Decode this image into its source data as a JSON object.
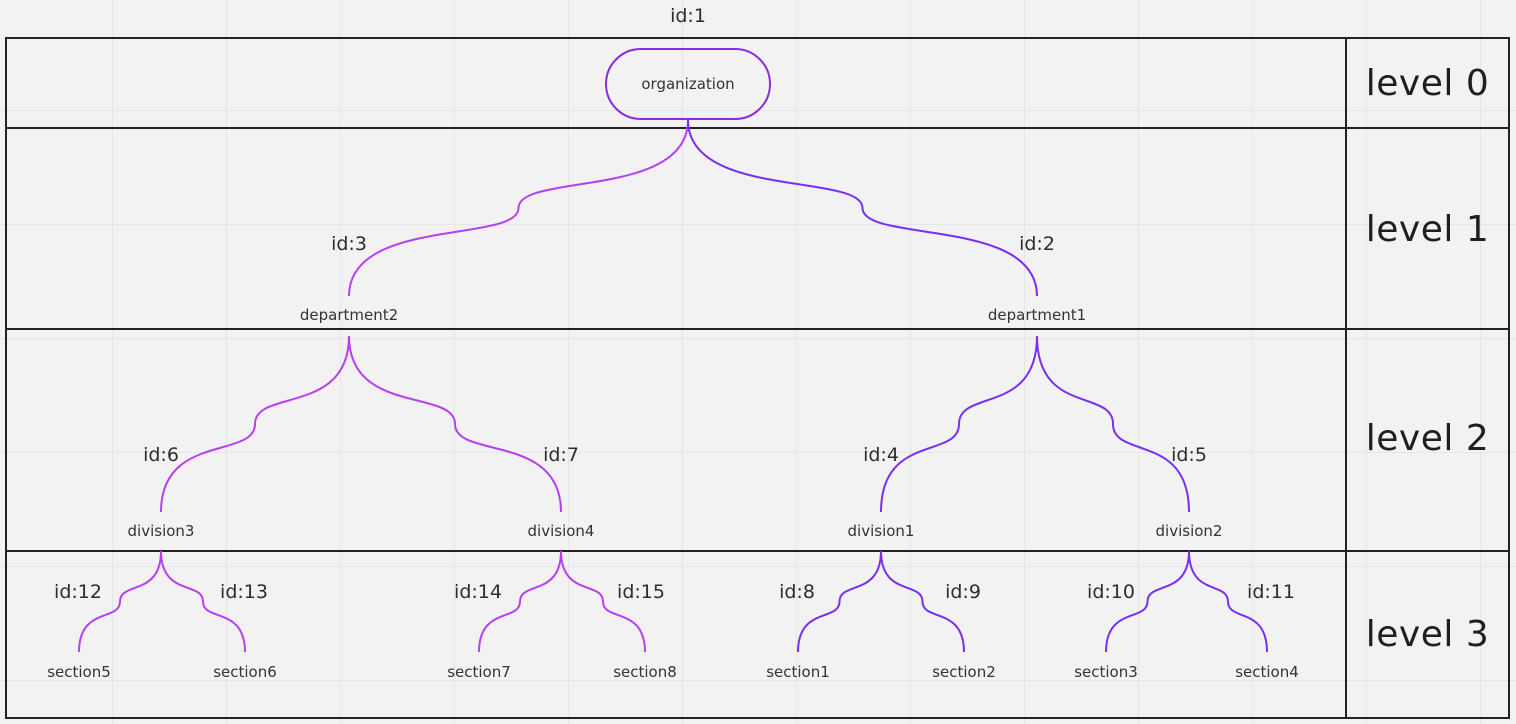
{
  "levels": [
    "level 0",
    "level 1",
    "level 2",
    "level 3"
  ],
  "nodes": {
    "organization": {
      "id_label": "id:1",
      "name": "organization"
    },
    "department2": {
      "id_label": "id:3",
      "name": "department2"
    },
    "department1": {
      "id_label": "id:2",
      "name": "department1"
    },
    "division3": {
      "id_label": "id:6",
      "name": "division3"
    },
    "division4": {
      "id_label": "id:7",
      "name": "division4"
    },
    "division1": {
      "id_label": "id:4",
      "name": "division1"
    },
    "division2": {
      "id_label": "id:5",
      "name": "division2"
    },
    "section5": {
      "id_label": "id:12",
      "name": "section5"
    },
    "section6": {
      "id_label": "id:13",
      "name": "section6"
    },
    "section7": {
      "id_label": "id:14",
      "name": "section7"
    },
    "section8": {
      "id_label": "id:15",
      "name": "section8"
    },
    "section1": {
      "id_label": "id:8",
      "name": "section1"
    },
    "section2": {
      "id_label": "id:9",
      "name": "section2"
    },
    "section3": {
      "id_label": "id:10",
      "name": "section3"
    },
    "section4": {
      "id_label": "id:11",
      "name": "section4"
    }
  },
  "edges": [
    {
      "from": "organization",
      "to": "department2"
    },
    {
      "from": "organization",
      "to": "department1"
    },
    {
      "from": "department2",
      "to": "division3"
    },
    {
      "from": "department2",
      "to": "division4"
    },
    {
      "from": "department1",
      "to": "division1"
    },
    {
      "from": "department1",
      "to": "division2"
    },
    {
      "from": "division3",
      "to": "section5"
    },
    {
      "from": "division3",
      "to": "section6"
    },
    {
      "from": "division4",
      "to": "section7"
    },
    {
      "from": "division4",
      "to": "section8"
    },
    {
      "from": "division1",
      "to": "section1"
    },
    {
      "from": "division1",
      "to": "section2"
    },
    {
      "from": "division2",
      "to": "section3"
    },
    {
      "from": "division2",
      "to": "section4"
    }
  ],
  "colors": {
    "edge_left_branch": "#b83ff0",
    "edge_right_branch": "#7a2ff0",
    "root_border": "#8a2be2",
    "band_border": "#222222"
  }
}
